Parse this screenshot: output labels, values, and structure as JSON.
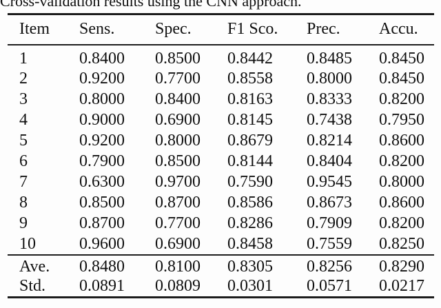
{
  "caption": "Cross-validation results using the CNN approach.",
  "table": {
    "headers": [
      "Item",
      "Sens.",
      "Spec.",
      "F1 Sco.",
      "Prec.",
      "Accu."
    ],
    "rows": [
      [
        "1",
        "0.8400",
        "0.8500",
        "0.8442",
        "0.8485",
        "0.8450"
      ],
      [
        "2",
        "0.9200",
        "0.7700",
        "0.8558",
        "0.8000",
        "0.8450"
      ],
      [
        "3",
        "0.8000",
        "0.8400",
        "0.8163",
        "0.8333",
        "0.8200"
      ],
      [
        "4",
        "0.9000",
        "0.6900",
        "0.8145",
        "0.7438",
        "0.7950"
      ],
      [
        "5",
        "0.9200",
        "0.8000",
        "0.8679",
        "0.8214",
        "0.8600"
      ],
      [
        "6",
        "0.7900",
        "0.8500",
        "0.8144",
        "0.8404",
        "0.8200"
      ],
      [
        "7",
        "0.6300",
        "0.9700",
        "0.7590",
        "0.9545",
        "0.8000"
      ],
      [
        "8",
        "0.8500",
        "0.8700",
        "0.8586",
        "0.8673",
        "0.8600"
      ],
      [
        "9",
        "0.8700",
        "0.7700",
        "0.8286",
        "0.7909",
        "0.8200"
      ],
      [
        "10",
        "0.9600",
        "0.6900",
        "0.8458",
        "0.7559",
        "0.8250"
      ]
    ],
    "summary_rows": [
      [
        "Ave.",
        "0.8480",
        "0.8100",
        "0.8305",
        "0.8256",
        "0.8290"
      ],
      [
        "Std.",
        "0.0891",
        "0.0809",
        "0.0301",
        "0.0571",
        "0.0217"
      ]
    ]
  },
  "colors": {
    "text": "#111111",
    "rule": "#1c1c1c",
    "background": "#fdfdfd"
  }
}
